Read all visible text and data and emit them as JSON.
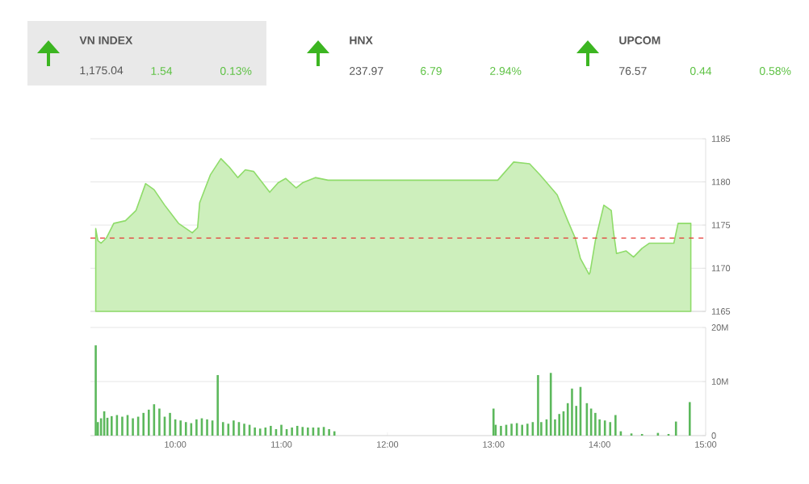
{
  "chart_data": [
    {
      "type": "other",
      "annotations": [
        "VN INDEX",
        "1,175.04",
        "1.54",
        "0.13%",
        "HNX",
        "237.97",
        "6.79",
        "2.94%",
        "UPCOM",
        "76.57",
        "0.44",
        "0.58%"
      ]
    },
    {
      "type": "area",
      "color": "#8fdc6a",
      "xlim": [
        9.2,
        15
      ],
      "ylim": [
        1165,
        1185
      ],
      "yticks": [
        1165,
        1170,
        1175,
        1180,
        1185
      ],
      "grid": "y",
      "tick_labels": "y",
      "x": [
        9.25,
        9.27,
        9.3,
        9.35,
        9.42,
        9.53,
        9.63,
        9.72,
        9.8,
        9.9,
        10.03,
        10.16,
        10.21,
        10.23,
        10.33,
        10.43,
        10.51,
        10.59,
        10.66,
        10.74,
        10.89,
        10.97,
        11.04,
        11.14,
        11.2,
        11.32,
        11.44,
        11.5,
        13.0,
        13.04,
        13.19,
        13.34,
        13.44,
        13.6,
        13.7,
        13.77,
        13.82,
        13.9,
        13.91,
        13.96,
        14.04,
        14.11,
        14.13,
        14.16,
        14.25,
        14.32,
        14.4,
        14.47,
        14.7,
        14.74,
        14.86
      ],
      "values": [
        1174.6,
        1173.2,
        1172.9,
        1173.5,
        1175.2,
        1175.5,
        1176.7,
        1179.8,
        1179.1,
        1177.3,
        1175.2,
        1174.1,
        1174.7,
        1177.6,
        1180.8,
        1182.7,
        1181.7,
        1180.5,
        1181.4,
        1181.2,
        1178.8,
        1179.9,
        1180.4,
        1179.3,
        1179.9,
        1180.5,
        1180.2,
        1180.2,
        1180.2,
        1180.2,
        1182.3,
        1182.1,
        1180.8,
        1178.5,
        1175.5,
        1173.5,
        1171.1,
        1169.3,
        1169.5,
        1173.2,
        1177.3,
        1176.7,
        1174.3,
        1171.7,
        1172.0,
        1171.3,
        1172.3,
        1172.9,
        1172.9,
        1175.2,
        1175.2
      ],
      "ref_lines": [
        {
          "axis": "y",
          "value": 1173.5,
          "color": "#e53935",
          "line_style": "dashed"
        }
      ]
    },
    {
      "type": "bar",
      "color": "#5cb85c",
      "xlim": [
        9.2,
        15
      ],
      "ylim": [
        0,
        20
      ],
      "yticks": [
        0,
        {
          "value": 10,
          "label": "10M"
        },
        {
          "value": 20,
          "label": "20M"
        }
      ],
      "grid": "y",
      "xticks": [
        {
          "value": 10,
          "label": "10:00"
        },
        {
          "value": 11,
          "label": "11:00"
        },
        {
          "value": 12,
          "label": "12:00"
        },
        {
          "value": 13,
          "label": "13:00"
        },
        {
          "value": 14,
          "label": "14:00"
        },
        {
          "value": 15,
          "label": "15:00"
        }
      ],
      "x": [
        9.25,
        9.27,
        9.3,
        9.33,
        9.36,
        9.4,
        9.45,
        9.5,
        9.55,
        9.6,
        9.65,
        9.7,
        9.75,
        9.8,
        9.85,
        9.9,
        9.95,
        10.0,
        10.05,
        10.1,
        10.15,
        10.2,
        10.25,
        10.3,
        10.35,
        10.4,
        10.45,
        10.5,
        10.55,
        10.6,
        10.65,
        10.7,
        10.75,
        10.8,
        10.85,
        10.9,
        10.95,
        11.0,
        11.05,
        11.1,
        11.15,
        11.2,
        11.25,
        11.3,
        11.35,
        11.4,
        11.45,
        11.5,
        13.0,
        13.02,
        13.07,
        13.12,
        13.17,
        13.22,
        13.27,
        13.32,
        13.37,
        13.42,
        13.45,
        13.5,
        13.54,
        13.58,
        13.62,
        13.66,
        13.7,
        13.74,
        13.78,
        13.82,
        13.88,
        13.92,
        13.96,
        14.0,
        14.05,
        14.1,
        14.15,
        14.2,
        14.3,
        14.4,
        14.5,
        14.55,
        14.65,
        14.72,
        14.85
      ],
      "values": [
        16.7,
        2.5,
        3.2,
        4.5,
        3.3,
        3.6,
        3.8,
        3.5,
        3.8,
        3.2,
        3.5,
        4.2,
        4.8,
        5.8,
        5.0,
        3.5,
        4.2,
        3.0,
        2.8,
        2.5,
        2.3,
        3.0,
        3.2,
        3.0,
        2.8,
        11.2,
        2.5,
        2.2,
        2.8,
        2.5,
        2.2,
        2.0,
        1.5,
        1.3,
        1.5,
        1.8,
        1.2,
        2.0,
        1.2,
        1.5,
        1.8,
        1.6,
        1.5,
        1.5,
        1.5,
        1.6,
        1.2,
        0.8,
        5.0,
        2.0,
        1.8,
        2.0,
        2.2,
        2.3,
        2.0,
        2.2,
        2.5,
        11.2,
        2.5,
        3.0,
        11.6,
        3.0,
        4.0,
        4.5,
        6.0,
        8.7,
        5.5,
        9.0,
        6.0,
        5.0,
        4.2,
        3.0,
        2.8,
        2.5,
        3.8,
        0.8,
        0.4,
        0.3,
        null,
        0.5,
        0.3,
        2.6,
        6.2
      ]
    }
  ]
}
